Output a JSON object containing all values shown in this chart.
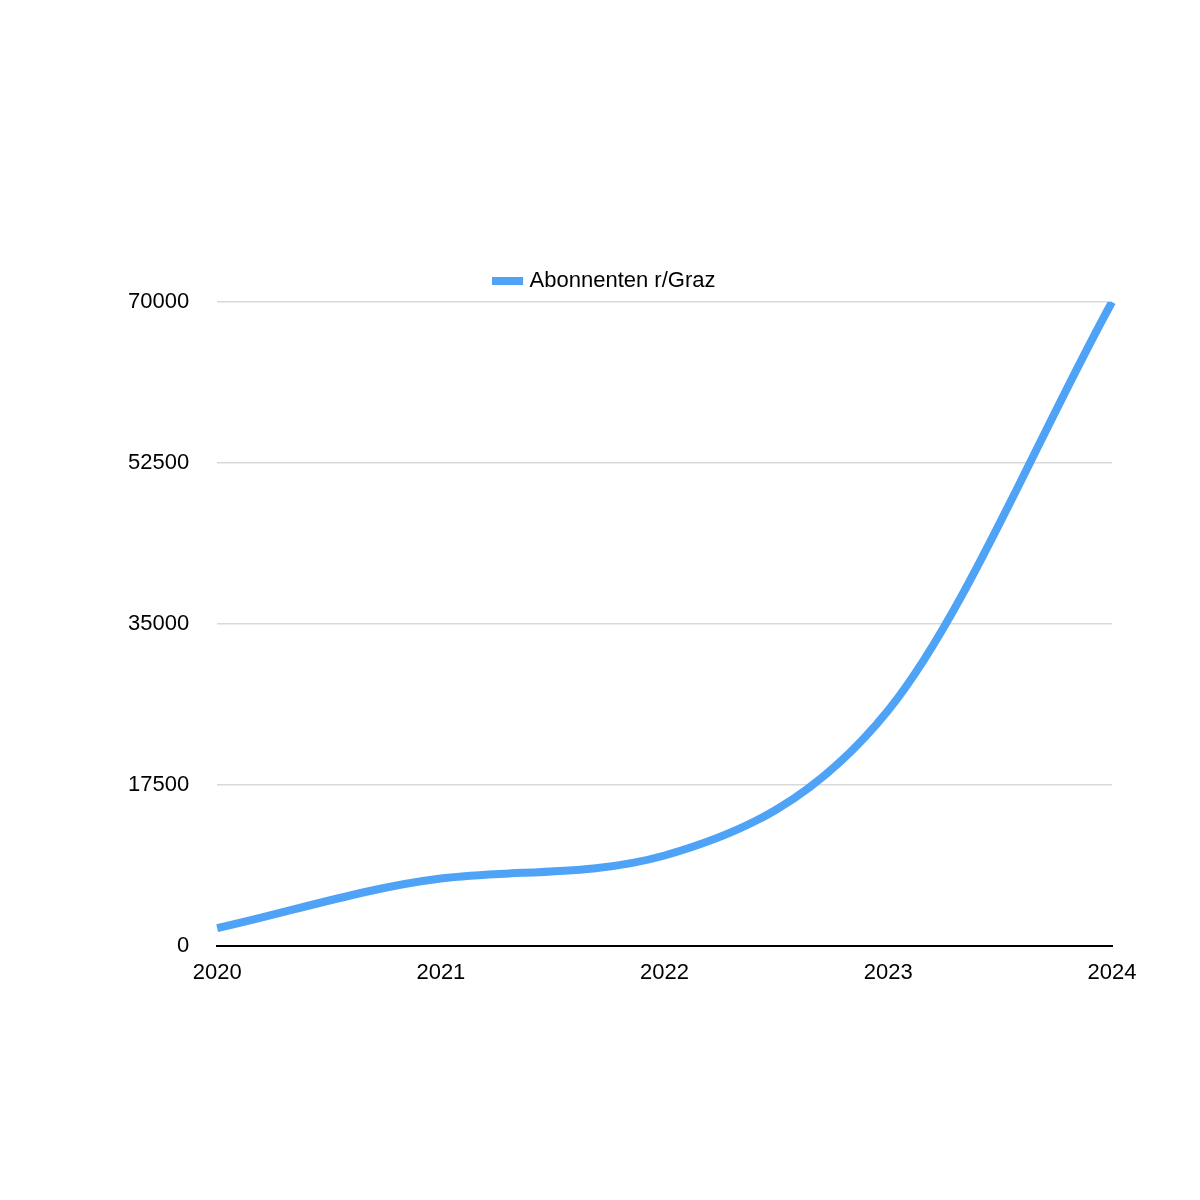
{
  "chart_data": {
    "type": "line",
    "categories": [
      "2020",
      "2021",
      "2022",
      "2023",
      "2024"
    ],
    "series": [
      {
        "name": "Abonnenten r/Graz",
        "color": "#4fa3f7",
        "values": [
          1900,
          7300,
          9800,
          25600,
          70000
        ]
      }
    ],
    "ylim": [
      0,
      70000
    ],
    "yticks": [
      0,
      17500,
      35000,
      52500,
      70000
    ],
    "grid": "y",
    "legend": "top",
    "marker": "none",
    "line_style": "solid"
  }
}
